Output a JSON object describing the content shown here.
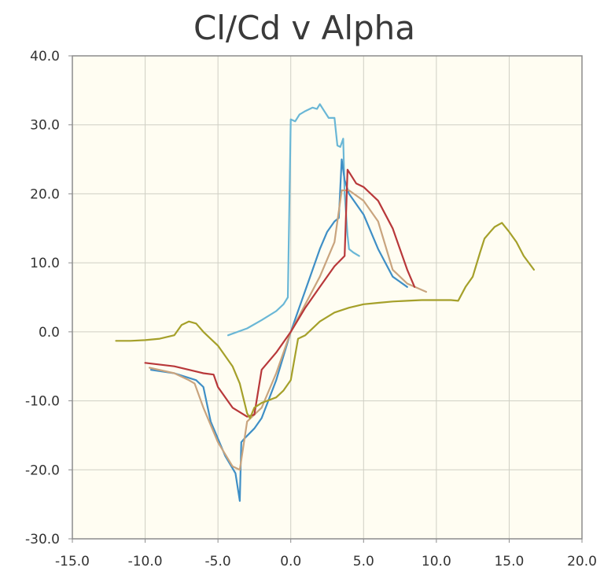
{
  "chart_data": {
    "type": "line",
    "title": "Cl/Cd v Alpha",
    "xlabel": "",
    "ylabel": "",
    "xlim": [
      -15,
      20
    ],
    "ylim": [
      -30,
      40
    ],
    "x_ticks": [
      -15,
      -10,
      -5,
      0,
      5,
      10,
      15,
      20
    ],
    "x_tick_labels": [
      "-15.0",
      "-10.0",
      "-5.0",
      "0.0",
      "5.0",
      "10.0",
      "15.0",
      "20.0"
    ],
    "y_ticks": [
      -30,
      -20,
      -10,
      0,
      10,
      20,
      30,
      40
    ],
    "y_tick_labels": [
      "-30.0",
      "-20.0",
      "-10.0",
      "0.0",
      "10.0",
      "20.0",
      "30.0",
      "40.0"
    ],
    "grid": true,
    "background": "#fffdf2",
    "series": [
      {
        "color": "#6ab7d6",
        "x": [
          -4.3,
          -3,
          -2,
          -1,
          -0.5,
          -0.2,
          0,
          0.3,
          0.6,
          1,
          1.5,
          1.8,
          2,
          2.3,
          2.6,
          3,
          3.2,
          3.4,
          3.6,
          3.7,
          3.8,
          3.9,
          4,
          4.3,
          4.7
        ],
        "y": [
          -0.5,
          0.5,
          1.7,
          3,
          4,
          5,
          30.8,
          30.5,
          31.5,
          32,
          32.5,
          32.3,
          33,
          32,
          31,
          31,
          27,
          26.8,
          28,
          20,
          17,
          14,
          12,
          11.5,
          11
        ]
      },
      {
        "color": "#3f8fc6",
        "x": [
          -9.6,
          -8,
          -6.5,
          -6,
          -5.5,
          -4.5,
          -3.8,
          -3.5,
          -3.4,
          -3.2,
          -2.5,
          -2,
          -1,
          0,
          1,
          2,
          2.5,
          3,
          3.3,
          3.5,
          3.7,
          4,
          5,
          6,
          7,
          8
        ],
        "y": [
          -5.5,
          -6,
          -7,
          -8,
          -13,
          -18,
          -20.5,
          -24.5,
          -16,
          -15.5,
          -14,
          -12.5,
          -7,
          0,
          6,
          12,
          14.5,
          16,
          16.5,
          25,
          22,
          20,
          17,
          12,
          8,
          6.5
        ]
      },
      {
        "color": "#c9a47e",
        "x": [
          -9.7,
          -8,
          -7,
          -6.6,
          -6,
          -5,
          -4,
          -3.5,
          -3,
          -2.5,
          -2,
          -1,
          0,
          1,
          2,
          3,
          3.5,
          4,
          5,
          6,
          7,
          8,
          9.3
        ],
        "y": [
          -5.2,
          -6,
          -7,
          -7.5,
          -11,
          -16,
          -19.5,
          -20,
          -13,
          -12,
          -11,
          -6,
          0,
          4,
          8,
          13,
          20.5,
          20.5,
          19,
          16,
          9,
          7,
          5.8
        ]
      },
      {
        "color": "#b8383a",
        "x": [
          -10,
          -8,
          -7,
          -6,
          -5.3,
          -5,
          -4,
          -3,
          -2.5,
          -2,
          -1,
          0,
          1,
          2,
          3,
          3.7,
          3.9,
          4.5,
          5,
          6,
          7,
          8,
          8.5
        ],
        "y": [
          -4.5,
          -5,
          -5.5,
          -6,
          -6.2,
          -8,
          -11,
          -12.3,
          -12,
          -5.5,
          -3,
          0,
          3.5,
          6.5,
          9.5,
          11,
          23.5,
          21.5,
          21,
          19,
          15,
          9,
          6.5
        ]
      },
      {
        "color": "#a5a02a",
        "x": [
          -12,
          -11,
          -10,
          -9,
          -8,
          -7.5,
          -7,
          -6.5,
          -6,
          -5,
          -4,
          -3.5,
          -3,
          -2.8,
          -2.5,
          -2,
          -1,
          -0.5,
          0,
          0.5,
          1,
          2,
          3,
          4,
          5,
          6,
          7,
          8,
          9,
          10,
          11,
          11.5,
          12,
          12.5,
          13,
          13.3,
          13.7,
          14,
          14.5,
          15,
          15.5,
          16,
          16.7
        ],
        "y": [
          -1.3,
          -1.3,
          -1.2,
          -1,
          -0.5,
          1,
          1.5,
          1.2,
          0,
          -2,
          -5,
          -7.5,
          -11.8,
          -12.5,
          -11,
          -10.3,
          -9.5,
          -8.5,
          -7,
          -1,
          -0.5,
          1.5,
          2.8,
          3.5,
          4,
          4.2,
          4.4,
          4.5,
          4.6,
          4.6,
          4.6,
          4.5,
          6.5,
          8,
          11.5,
          13.5,
          14.5,
          15.2,
          15.8,
          14.5,
          13,
          11,
          9
        ]
      }
    ]
  }
}
